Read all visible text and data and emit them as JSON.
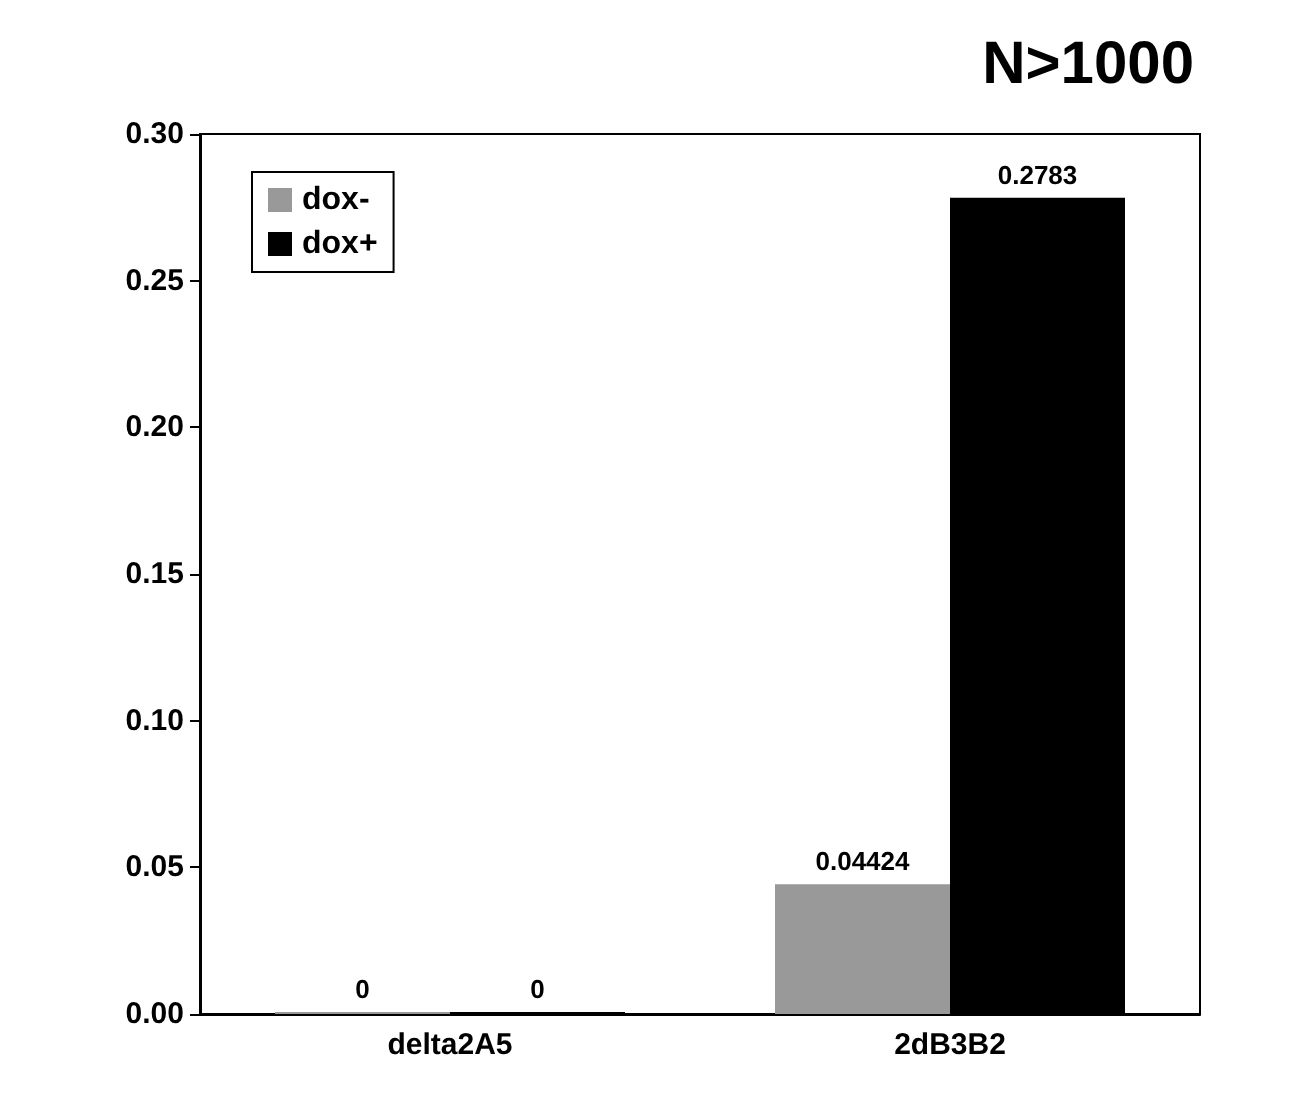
{
  "chart_data": {
    "type": "bar",
    "title": "N>1000",
    "categories": [
      "delta2A5",
      "2dB3B2"
    ],
    "series": [
      {
        "name": "dox-",
        "color": "#999999",
        "values": [
          0,
          0.04424
        ]
      },
      {
        "name": "dox+",
        "color": "#000000",
        "values": [
          0,
          0.2783
        ]
      }
    ],
    "ylim": [
      0,
      0.3
    ],
    "yticks": [
      {
        "value": 0,
        "label": "0.00"
      },
      {
        "value": 0.05,
        "label": "0.05"
      },
      {
        "value": 0.1,
        "label": "0.10"
      },
      {
        "value": 0.15,
        "label": "0.15"
      },
      {
        "value": 0.2,
        "label": "0.20"
      },
      {
        "value": 0.25,
        "label": "0.25"
      },
      {
        "value": 0.3,
        "label": "0.30"
      }
    ],
    "data_labels": true,
    "legend": "top left",
    "grid": false
  }
}
